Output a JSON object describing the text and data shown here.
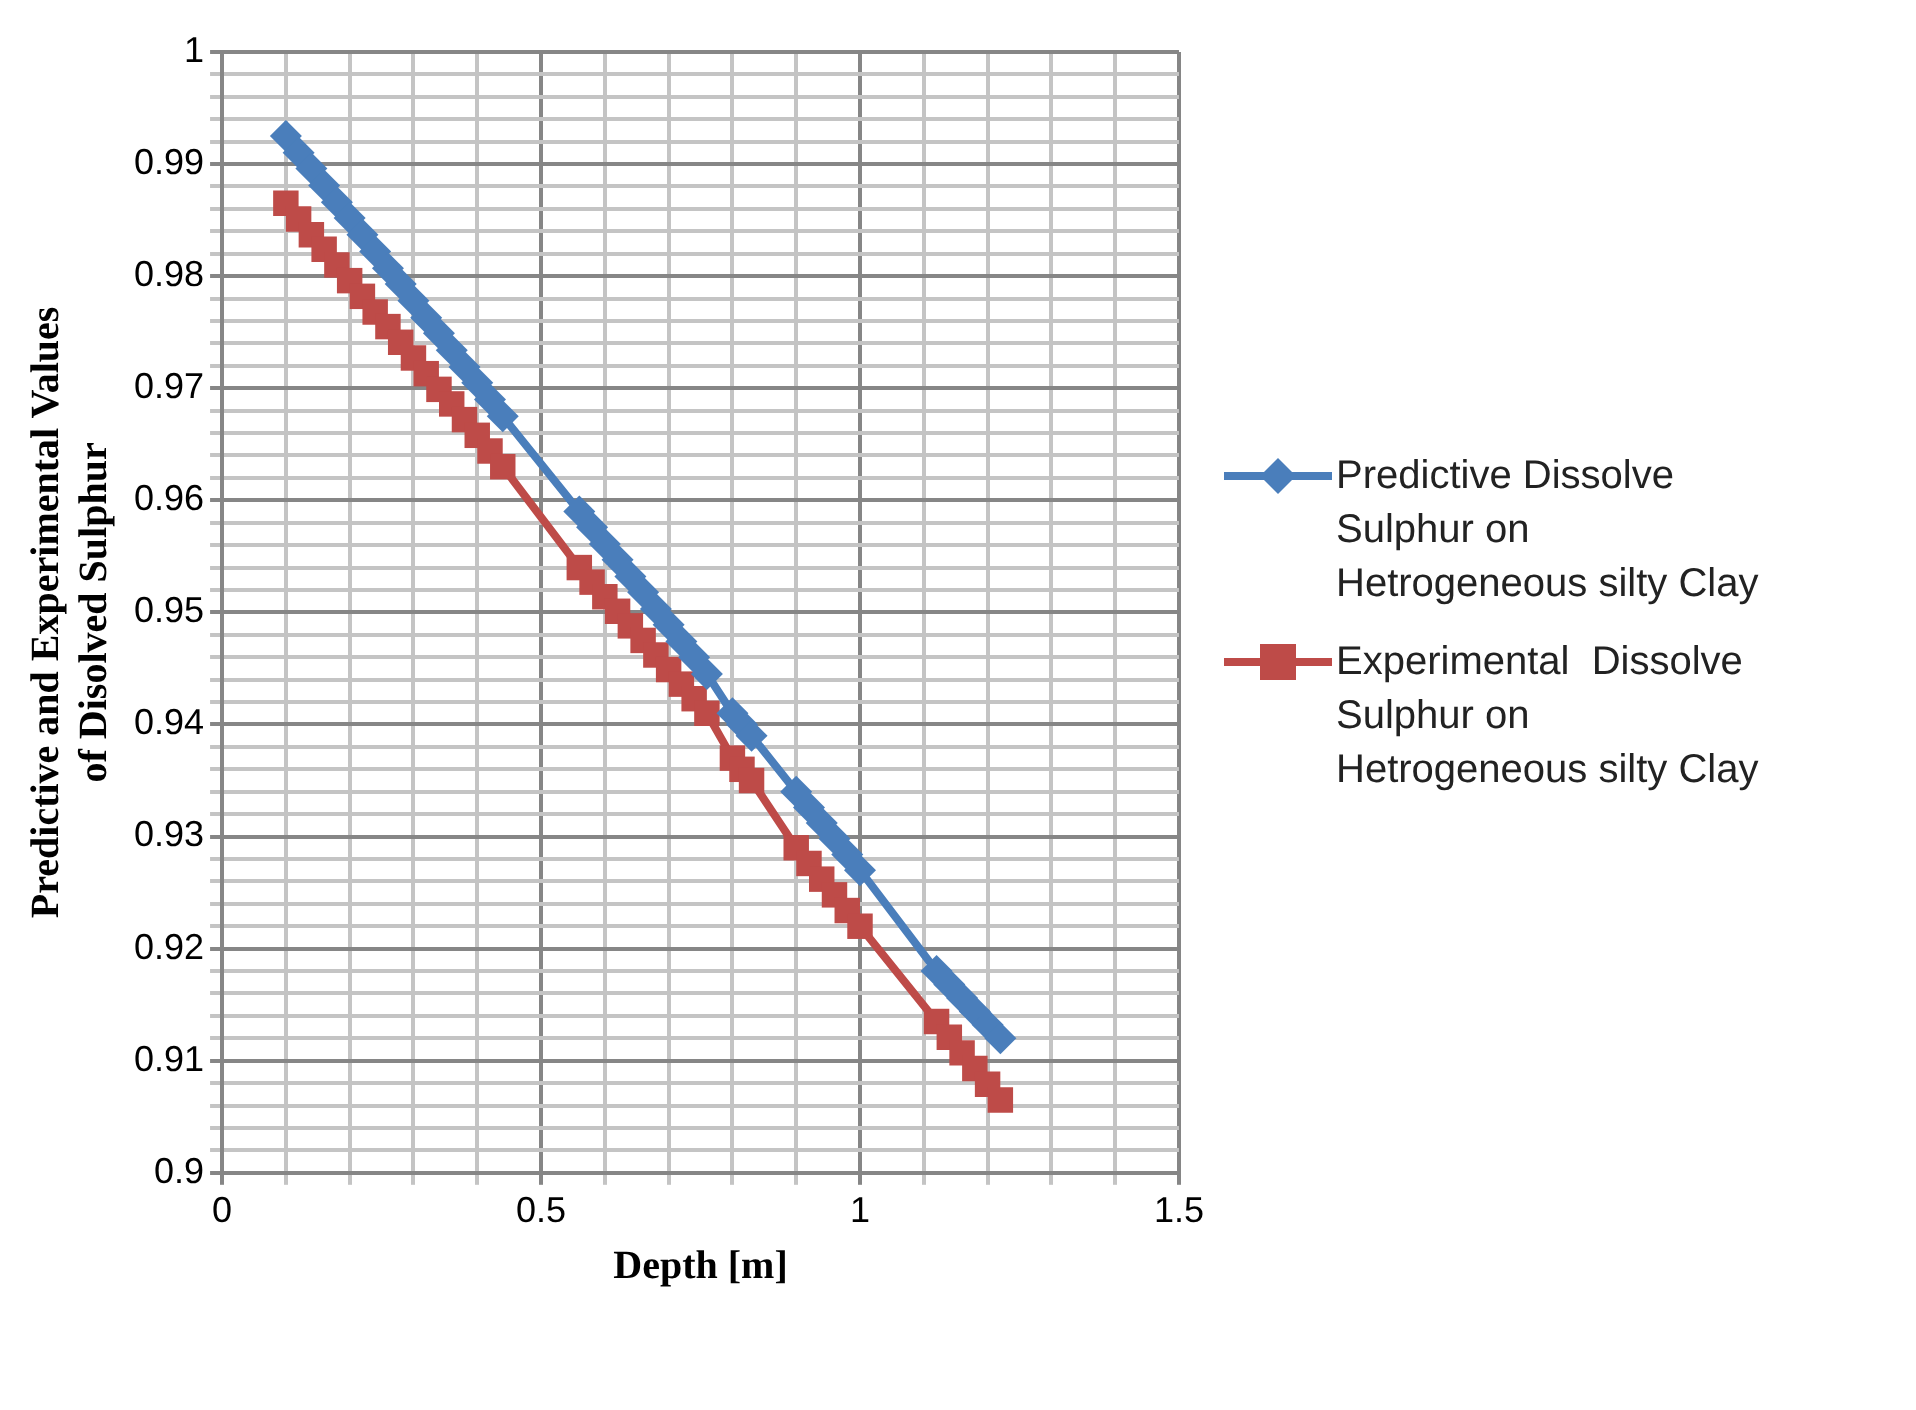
{
  "chart_data": {
    "type": "scatter",
    "xlabel": "Depth [m]",
    "ylabel": "Predictive and Experimental Values of Disolved Sulphur",
    "xlim": [
      0,
      1.5
    ],
    "ylim": [
      0.9,
      1
    ],
    "xticks": [
      0,
      {
        "value": 0.1,
        "label": null
      },
      {
        "value": 0.2,
        "label": null
      },
      {
        "value": 0.3,
        "label": null
      },
      {
        "value": 0.4,
        "label": null
      },
      0.5,
      {
        "value": 0.6,
        "label": null
      },
      {
        "value": 0.7,
        "label": null
      },
      {
        "value": 0.8,
        "label": null
      },
      {
        "value": 0.9,
        "label": null
      },
      1,
      {
        "value": 1.1,
        "label": null
      },
      {
        "value": 1.2,
        "label": null
      },
      {
        "value": 1.3,
        "label": null
      },
      {
        "value": 1.4,
        "label": null
      },
      1.5
    ],
    "yticks": [
      0.9,
      {
        "value": 0.902,
        "label": null
      },
      {
        "value": 0.904,
        "label": null
      },
      {
        "value": 0.906,
        "label": null
      },
      {
        "value": 0.908,
        "label": null
      },
      0.91,
      {
        "value": 0.912,
        "label": null
      },
      {
        "value": 0.914,
        "label": null
      },
      {
        "value": 0.916,
        "label": null
      },
      {
        "value": 0.918,
        "label": null
      },
      0.92,
      {
        "value": 0.922,
        "label": null
      },
      {
        "value": 0.924,
        "label": null
      },
      {
        "value": 0.926,
        "label": null
      },
      {
        "value": 0.928,
        "label": null
      },
      0.93,
      {
        "value": 0.932,
        "label": null
      },
      {
        "value": 0.934,
        "label": null
      },
      {
        "value": 0.936,
        "label": null
      },
      {
        "value": 0.938,
        "label": null
      },
      0.94,
      {
        "value": 0.942,
        "label": null
      },
      {
        "value": 0.944,
        "label": null
      },
      {
        "value": 0.946,
        "label": null
      },
      {
        "value": 0.948,
        "label": null
      },
      0.95,
      {
        "value": 0.952,
        "label": null
      },
      {
        "value": 0.954,
        "label": null
      },
      {
        "value": 0.956,
        "label": null
      },
      {
        "value": 0.958,
        "label": null
      },
      0.96,
      {
        "value": 0.962,
        "label": null
      },
      {
        "value": 0.964,
        "label": null
      },
      {
        "value": 0.966,
        "label": null
      },
      {
        "value": 0.968,
        "label": null
      },
      0.97,
      {
        "value": 0.972,
        "label": null
      },
      {
        "value": 0.974,
        "label": null
      },
      {
        "value": 0.976,
        "label": null
      },
      {
        "value": 0.978,
        "label": null
      },
      0.98,
      {
        "value": 0.982,
        "label": null
      },
      {
        "value": 0.984,
        "label": null
      },
      {
        "value": 0.986,
        "label": null
      },
      {
        "value": 0.988,
        "label": null
      },
      0.99,
      {
        "value": 0.992,
        "label": null
      },
      {
        "value": 0.994,
        "label": null
      },
      {
        "value": 0.996,
        "label": null
      },
      {
        "value": 0.998,
        "label": null
      },
      1
    ],
    "grid": true,
    "legend": "right",
    "line_style": "solid",
    "series": [
      {
        "name": "Predictive Dissolve Sulphur on Hetrogeneous silty Clay",
        "color": "#4a7ebb",
        "type": "line",
        "marker": "diamond",
        "x": [
          0.1,
          0.12,
          0.14,
          0.16,
          0.18,
          0.2,
          0.22,
          0.24,
          0.26,
          0.28,
          0.3,
          0.32,
          0.34,
          0.36,
          0.38,
          0.4,
          0.42,
          0.44,
          0.56,
          0.58,
          0.6,
          0.62,
          0.64,
          0.66,
          0.68,
          0.7,
          0.72,
          0.74,
          0.76,
          0.8,
          0.815,
          0.83,
          0.9,
          0.92,
          0.94,
          0.96,
          0.98,
          1.0,
          1.12,
          1.14,
          1.16,
          1.18,
          1.2,
          1.22
        ],
        "values": [
          0.9925,
          0.991,
          0.9896,
          0.9881,
          0.9866,
          0.9852,
          0.9837,
          0.9822,
          0.9807,
          0.9793,
          0.9778,
          0.9763,
          0.9749,
          0.9734,
          0.9719,
          0.9705,
          0.969,
          0.9675,
          0.959,
          0.9576,
          0.9561,
          0.9547,
          0.9532,
          0.9518,
          0.9503,
          0.9489,
          0.9474,
          0.946,
          0.9445,
          0.941,
          0.94,
          0.939,
          0.934,
          0.9326,
          0.9312,
          0.9298,
          0.9284,
          0.927,
          0.918,
          0.9168,
          0.9156,
          0.9144,
          0.9132,
          0.912
        ]
      },
      {
        "name": "Experimental  Dissolve Sulphur on Hetrogeneous silty Clay",
        "color": "#be4b48",
        "type": "line",
        "marker": "square",
        "x": [
          0.1,
          0.12,
          0.14,
          0.16,
          0.18,
          0.2,
          0.22,
          0.24,
          0.26,
          0.28,
          0.3,
          0.32,
          0.34,
          0.36,
          0.38,
          0.4,
          0.42,
          0.44,
          0.56,
          0.58,
          0.6,
          0.62,
          0.64,
          0.66,
          0.68,
          0.7,
          0.72,
          0.74,
          0.76,
          0.8,
          0.815,
          0.83,
          0.9,
          0.92,
          0.94,
          0.96,
          0.98,
          1.0,
          1.12,
          1.14,
          1.16,
          1.18,
          1.2,
          1.22
        ],
        "values": [
          0.9865,
          0.9851,
          0.9837,
          0.9824,
          0.981,
          0.9796,
          0.9782,
          0.9768,
          0.9755,
          0.9741,
          0.9727,
          0.9713,
          0.9699,
          0.9686,
          0.9672,
          0.9658,
          0.9644,
          0.963,
          0.954,
          0.9527,
          0.9514,
          0.9501,
          0.9488,
          0.9475,
          0.9462,
          0.9449,
          0.9436,
          0.9423,
          0.941,
          0.937,
          0.936,
          0.935,
          0.929,
          0.9276,
          0.9262,
          0.9248,
          0.9234,
          0.922,
          0.9135,
          0.9121,
          0.9107,
          0.9093,
          0.9079,
          0.9065
        ]
      }
    ]
  }
}
